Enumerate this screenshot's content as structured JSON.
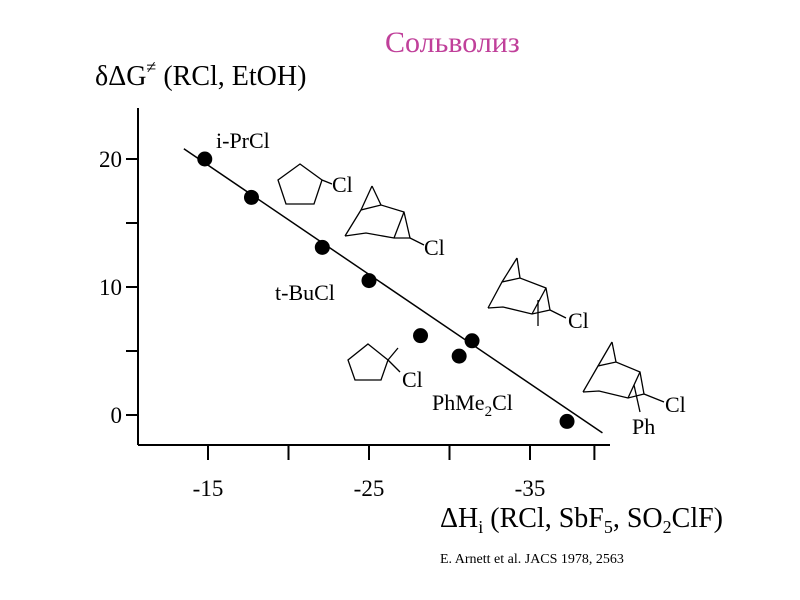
{
  "title": "Сольволиз",
  "citation": "E. Arnett et al. JACS 1978, 2563",
  "chart_data": {
    "type": "scatter",
    "ylabel": "δΔG≠  (RCl, EtOH)",
    "xlabel": "ΔH_i  (RCl, SbF₅, SO₂ClF)",
    "x_ticks": [
      "-15",
      "-25",
      "-35"
    ],
    "y_ticks": [
      "0",
      "10",
      "20"
    ],
    "xlim": [
      -11,
      -39
    ],
    "ylim": [
      -2,
      24
    ],
    "grid": false,
    "points": [
      {
        "x": -14.8,
        "y": 20.0,
        "label": "i-PrCl"
      },
      {
        "x": -17.7,
        "y": 17.0,
        "label": "cyclopentyl-Cl"
      },
      {
        "x": -22.1,
        "y": 13.1,
        "label": "2-norbornyl-Cl"
      },
      {
        "x": -25.0,
        "y": 10.5,
        "label": "t-BuCl"
      },
      {
        "x": -28.2,
        "y": 6.2,
        "label": "2-methyl-2-norbornyl-Cl"
      },
      {
        "x": -30.6,
        "y": 4.6,
        "label": "1-methylcyclopentyl-Cl"
      },
      {
        "x": -31.4,
        "y": 5.8,
        "label": "PhMe₂Cl"
      },
      {
        "x": -37.3,
        "y": -0.5,
        "label": "2-phenyl-2-norbornyl-Cl"
      }
    ],
    "fit_line": {
      "x": [
        -13.5,
        -39.5
      ],
      "y": [
        20.8,
        -1.4
      ]
    },
    "text_labels": [
      "i-PrCl",
      "Cl",
      "Cl",
      "t-BuCl",
      "Cl",
      "Cl",
      "PhMe₂Cl",
      "Cl",
      "Ph"
    ]
  }
}
